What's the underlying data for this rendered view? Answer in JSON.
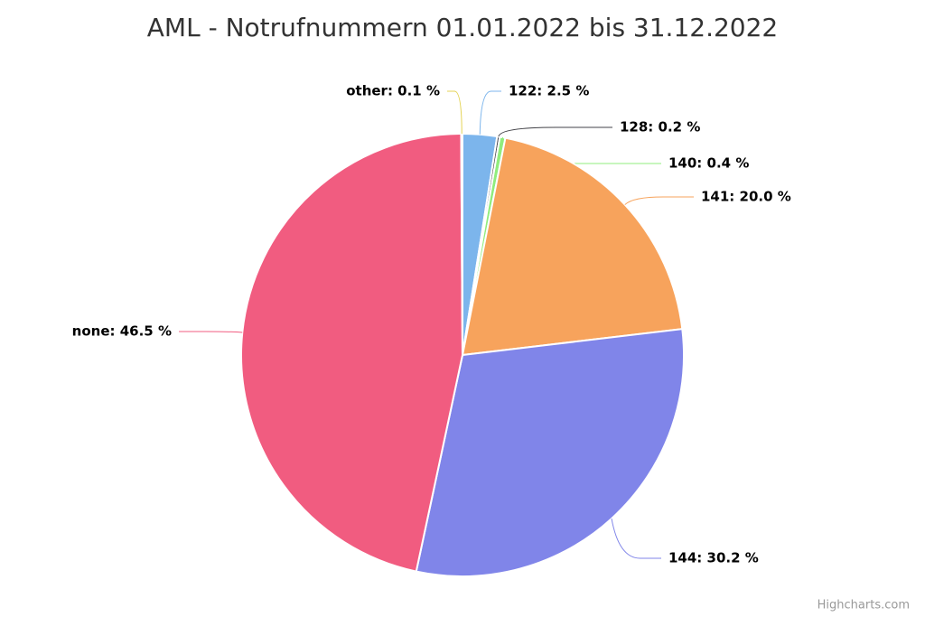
{
  "chart_data": {
    "type": "pie",
    "title": "AML - Notrufnummern 01.01.2022 bis 31.12.2022",
    "values": [
      2.5,
      0.2,
      0.4,
      20.0,
      30.2,
      46.5,
      0.1
    ],
    "value_labels": [
      "122: 2.5 %",
      "128: 0.2 %",
      "140: 0.4 %",
      "141: 20.0 %",
      "144: 30.2 %",
      "none: 46.5 %",
      "other: 0.1 %"
    ],
    "colors": [
      "#7cb5ec",
      "#434348",
      "#90ed7d",
      "#f7a35c",
      "#8085e9",
      "#f15c80",
      "#e4d354"
    ],
    "credits": "Highcharts.com"
  }
}
